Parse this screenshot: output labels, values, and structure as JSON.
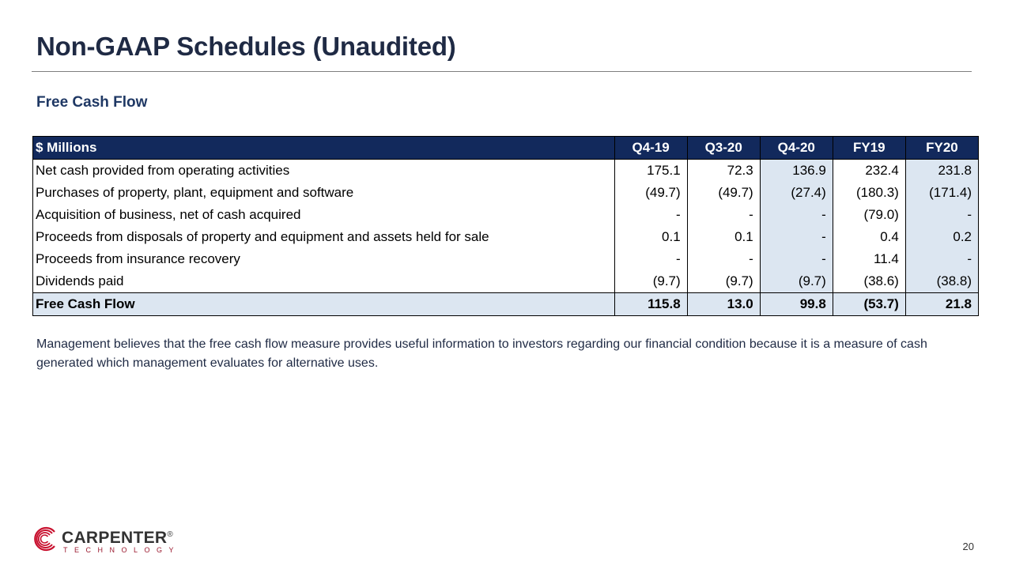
{
  "title": "Non-GAAP Schedules (Unaudited)",
  "subtitle": "Free Cash Flow",
  "table": {
    "header": [
      "$ Millions",
      "Q4-19",
      "Q3-20",
      "Q4-20",
      "FY19",
      "FY20"
    ],
    "rows": [
      {
        "label": "Net cash provided from operating activities",
        "values": [
          "175.1",
          "72.3",
          "136.9",
          "232.4",
          "231.8"
        ]
      },
      {
        "label": "Purchases of property, plant, equipment and software",
        "values": [
          "(49.7)",
          "(49.7)",
          "(27.4)",
          "(180.3)",
          "(171.4)"
        ]
      },
      {
        "label": "Acquisition of business, net of cash acquired",
        "values": [
          "-",
          "-",
          "-",
          "(79.0)",
          "-"
        ]
      },
      {
        "label": "Proceeds from disposals of property and equipment and assets held for sale",
        "values": [
          "0.1",
          "0.1",
          "-",
          "0.4",
          "0.2"
        ]
      },
      {
        "label": "Proceeds from insurance recovery",
        "values": [
          "-",
          "-",
          "-",
          "11.4",
          "-"
        ]
      },
      {
        "label": "Dividends paid",
        "values": [
          "(9.7)",
          "(9.7)",
          "(9.7)",
          "(38.6)",
          "(38.8)"
        ]
      }
    ],
    "total": {
      "label": "Free Cash Flow",
      "values": [
        "115.8",
        "13.0",
        "99.8",
        "(53.7)",
        "21.8"
      ]
    }
  },
  "note": "Management believes that the free cash flow measure provides useful information to investors regarding our financial condition because it is a measure of cash generated which management evaluates for alternative uses.",
  "logo": {
    "name": "CARPENTER",
    "registered": "®",
    "sub": "TECHNOLOGY"
  },
  "page_number": "20",
  "colors": {
    "title": "#1f2a44",
    "header_bg": "#12295c",
    "highlight": "#dce6f1",
    "brand_red": "#c8102e"
  }
}
